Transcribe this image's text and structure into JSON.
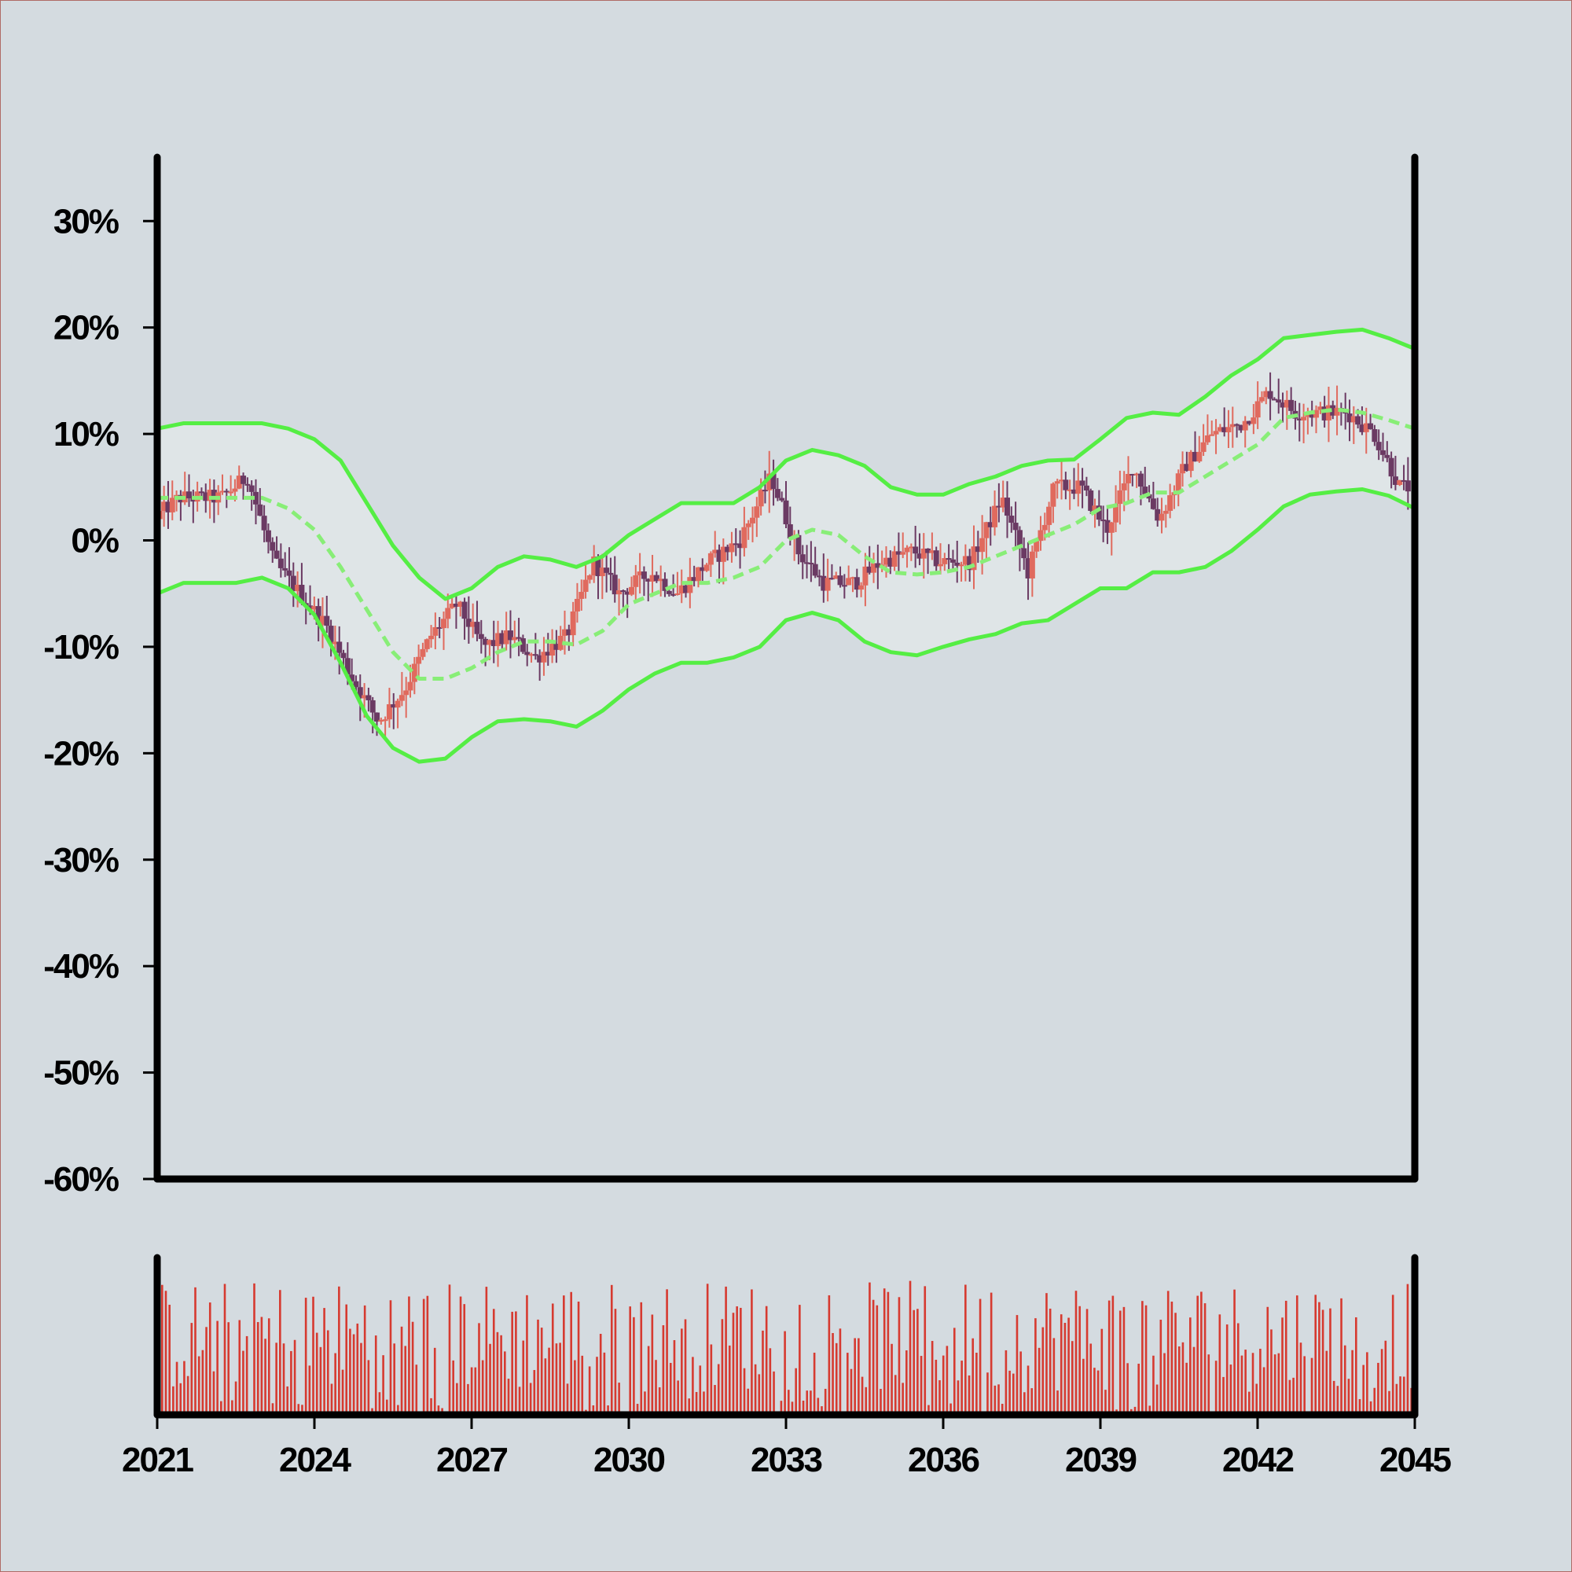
{
  "chart_data": {
    "type": "candlestick",
    "title": "",
    "xlabel": "",
    "ylabel": "",
    "x_ticks": [
      "2021",
      "2024",
      "2027",
      "2030",
      "2033",
      "2036",
      "2039",
      "2042",
      "2045"
    ],
    "y_ticks": [
      "30%",
      "20%",
      "10%",
      "0%",
      "-10%",
      "-20%",
      "-30%",
      "-40%",
      "-50%",
      "-60%"
    ],
    "xlim": [
      2021,
      2045
    ],
    "ylim": [
      -60,
      36
    ],
    "y_unit": "%",
    "colors": {
      "up_candle": "#e06a5e",
      "down_candle": "#6b3a63",
      "band_line": "#55ee44",
      "mid_line": "#88ee77",
      "band_fill": "#dfe5e7",
      "volume": "#d63a30",
      "axis": "#000000",
      "background": "#d4dbe0"
    },
    "price_path": [
      {
        "x": 2021.0,
        "y": 2
      },
      {
        "x": 2021.5,
        "y": 4
      },
      {
        "x": 2022.3,
        "y": 4
      },
      {
        "x": 2022.8,
        "y": 6
      },
      {
        "x": 2023.3,
        "y": -2
      },
      {
        "x": 2023.8,
        "y": -5
      },
      {
        "x": 2024.3,
        "y": -8
      },
      {
        "x": 2024.8,
        "y": -13
      },
      {
        "x": 2025.3,
        "y": -17
      },
      {
        "x": 2025.8,
        "y": -14
      },
      {
        "x": 2026.3,
        "y": -9
      },
      {
        "x": 2026.8,
        "y": -6
      },
      {
        "x": 2027.3,
        "y": -10
      },
      {
        "x": 2027.8,
        "y": -9
      },
      {
        "x": 2028.3,
        "y": -11
      },
      {
        "x": 2028.9,
        "y": -9
      },
      {
        "x": 2029.4,
        "y": -2
      },
      {
        "x": 2029.9,
        "y": -5
      },
      {
        "x": 2030.5,
        "y": -3
      },
      {
        "x": 2031.0,
        "y": -5
      },
      {
        "x": 2031.6,
        "y": -2
      },
      {
        "x": 2032.2,
        "y": 0
      },
      {
        "x": 2032.8,
        "y": 6
      },
      {
        "x": 2033.3,
        "y": -1
      },
      {
        "x": 2033.8,
        "y": -4
      },
      {
        "x": 2034.4,
        "y": -4
      },
      {
        "x": 2034.9,
        "y": -2
      },
      {
        "x": 2035.5,
        "y": -1
      },
      {
        "x": 2036.0,
        "y": -2
      },
      {
        "x": 2036.6,
        "y": -2
      },
      {
        "x": 2037.2,
        "y": 4
      },
      {
        "x": 2037.7,
        "y": -3
      },
      {
        "x": 2038.2,
        "y": 5
      },
      {
        "x": 2038.7,
        "y": 5
      },
      {
        "x": 2039.2,
        "y": 1
      },
      {
        "x": 2039.7,
        "y": 7
      },
      {
        "x": 2040.2,
        "y": 2
      },
      {
        "x": 2040.7,
        "y": 7
      },
      {
        "x": 2041.2,
        "y": 10
      },
      {
        "x": 2041.8,
        "y": 11
      },
      {
        "x": 2042.3,
        "y": 14
      },
      {
        "x": 2042.8,
        "y": 12
      },
      {
        "x": 2043.3,
        "y": 12
      },
      {
        "x": 2043.8,
        "y": 12
      },
      {
        "x": 2044.3,
        "y": 10
      },
      {
        "x": 2044.8,
        "y": 5
      }
    ],
    "bands": {
      "x": [
        2021.0,
        2021.5,
        2022.0,
        2022.5,
        2023.0,
        2023.5,
        2024.0,
        2024.5,
        2025.0,
        2025.5,
        2026.0,
        2026.5,
        2027.0,
        2027.5,
        2028.0,
        2028.5,
        2029.0,
        2029.5,
        2030.0,
        2030.5,
        2031.0,
        2031.5,
        2032.0,
        2032.5,
        2033.0,
        2033.5,
        2034.0,
        2034.5,
        2035.0,
        2035.5,
        2036.0,
        2036.5,
        2037.0,
        2037.5,
        2038.0,
        2038.5,
        2039.0,
        2039.5,
        2040.0,
        2040.5,
        2041.0,
        2041.5,
        2042.0,
        2042.5,
        2043.0,
        2043.5,
        2044.0,
        2044.5,
        2045.0
      ],
      "upper": [
        10.5,
        11,
        11,
        11,
        11,
        10.5,
        9.5,
        7.5,
        3.5,
        -0.5,
        -3.5,
        -5.5,
        -4.5,
        -2.5,
        -1.5,
        -1.8,
        -2.5,
        -1.5,
        0.5,
        2,
        3.5,
        3.5,
        3.5,
        5,
        7.5,
        8.5,
        8,
        7,
        5,
        4.3,
        4.3,
        5.3,
        6,
        7,
        7.5,
        7.6,
        9.5,
        11.5,
        12,
        11.8,
        13.5,
        15.5,
        17,
        19,
        19.3,
        19.6,
        19.8,
        19,
        18
      ],
      "middle": [
        4,
        4,
        4,
        4,
        4,
        3,
        1,
        -2.5,
        -6.5,
        -10.5,
        -13,
        -13,
        -12,
        -10.5,
        -9.5,
        -9.5,
        -9.8,
        -8.5,
        -6,
        -5,
        -4,
        -4,
        -3.5,
        -2.5,
        0,
        1,
        0.5,
        -1.5,
        -3,
        -3.2,
        -3,
        -2.5,
        -1.5,
        -0.5,
        0.5,
        1.5,
        3,
        3.5,
        4.5,
        4.5,
        6,
        7.5,
        9,
        11.5,
        12,
        12.3,
        12,
        11.3,
        10.5
      ],
      "lower": [
        -5,
        -4,
        -4,
        -4,
        -3.5,
        -4.5,
        -7,
        -11.5,
        -16.5,
        -19.5,
        -20.8,
        -20.5,
        -18.5,
        -17,
        -16.8,
        -17,
        -17.5,
        -16,
        -14,
        -12.5,
        -11.5,
        -11.5,
        -11,
        -10,
        -7.5,
        -6.8,
        -7.5,
        -9.5,
        -10.5,
        -10.8,
        -10,
        -9.3,
        -8.8,
        -7.8,
        -7.5,
        -6,
        -4.5,
        -4.5,
        -3,
        -3,
        -2.5,
        -1,
        1,
        3.2,
        4.3,
        4.6,
        4.8,
        4.2,
        3
      ]
    },
    "volume_note": "relative volume bars, one per period, scaled to panel height (0-1)",
    "legend": "none",
    "grid": false
  }
}
